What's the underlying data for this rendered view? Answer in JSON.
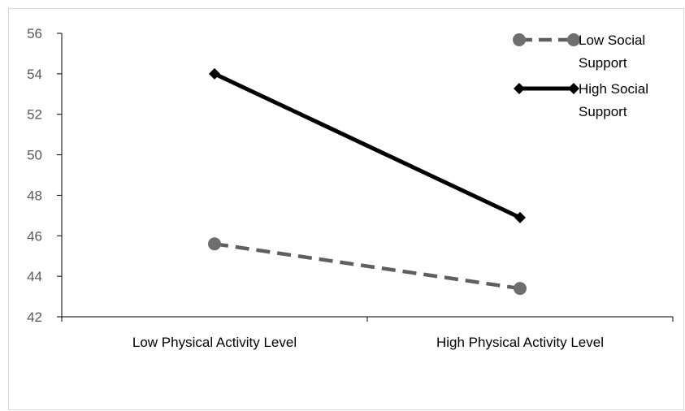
{
  "chart_data": {
    "type": "line",
    "categories": [
      "Low Physical Activity Level",
      "High Physical Activity Level"
    ],
    "ylim": [
      42,
      56
    ],
    "y_ticks": [
      42,
      44,
      46,
      48,
      50,
      52,
      54,
      56
    ],
    "y_tick_labels": [
      "42",
      "44",
      "46",
      "48",
      "50",
      "52",
      "54",
      "56"
    ],
    "grid": false,
    "legend_position": "top-right",
    "series": [
      {
        "name_lines": [
          "Low Social",
          "Support"
        ],
        "values": [
          45.6,
          43.4
        ],
        "color": "#5f5f5f",
        "line_style": "dashed",
        "marker": "circle",
        "marker_color": "#6e6e6e"
      },
      {
        "name_lines": [
          "High Social",
          "Support"
        ],
        "values": [
          54.0,
          46.9
        ],
        "color": "#000000",
        "line_style": "solid",
        "marker": "diamond",
        "marker_color": "#000000"
      }
    ]
  }
}
